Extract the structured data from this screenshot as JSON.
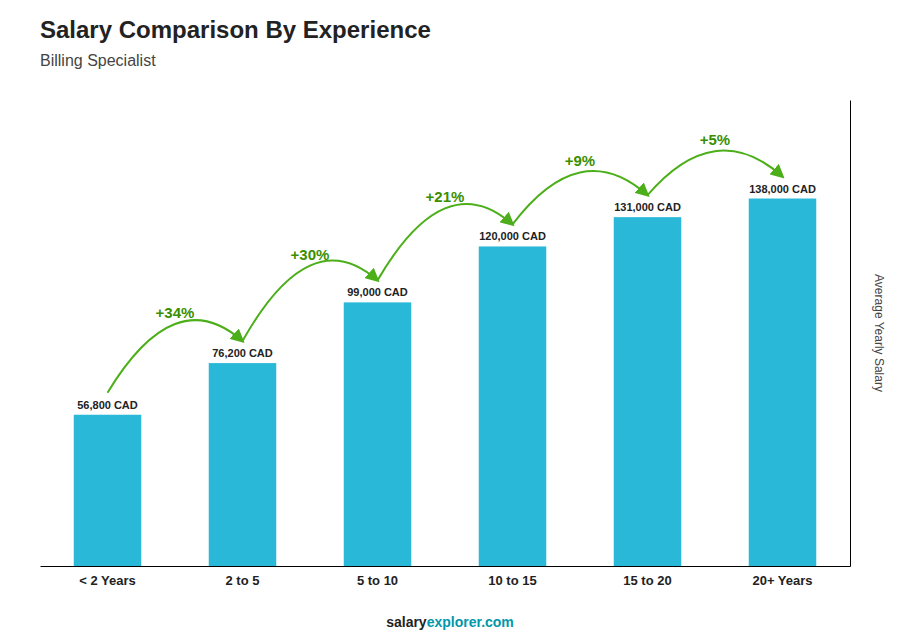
{
  "chart_data": {
    "type": "bar",
    "title": "Salary Comparison By Experience",
    "subtitle": "Billing Specialist",
    "ylabel": "Average Yearly Salary",
    "footer": [
      "salary",
      "explorer.com"
    ],
    "categories": [
      "< 2 Years",
      "2 to 5",
      "5 to 10",
      "10 to 15",
      "15 to 20",
      "20+ Years"
    ],
    "values": [
      56800,
      76200,
      99000,
      120000,
      131000,
      138000
    ],
    "value_labels": [
      "56,800 CAD",
      "76,200 CAD",
      "99,000 CAD",
      "120,000 CAD",
      "131,000 CAD",
      "138,000 CAD"
    ],
    "data_labels": true,
    "annotations": [
      "+34%",
      "+30%",
      "+21%",
      "+9%",
      "+5%"
    ],
    "color": "#29b8d8",
    "ylim": [
      0,
      175000
    ],
    "yticks": [],
    "tick_labels": "x",
    "grid": false
  }
}
